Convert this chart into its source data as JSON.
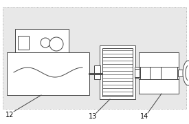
{
  "bg_color": "#e8e8e8",
  "line_color": "#444444",
  "label_12": "12",
  "label_13": "13",
  "label_14": "14",
  "figsize": [
    2.75,
    1.8
  ],
  "dpi": 100,
  "lw": 0.7
}
